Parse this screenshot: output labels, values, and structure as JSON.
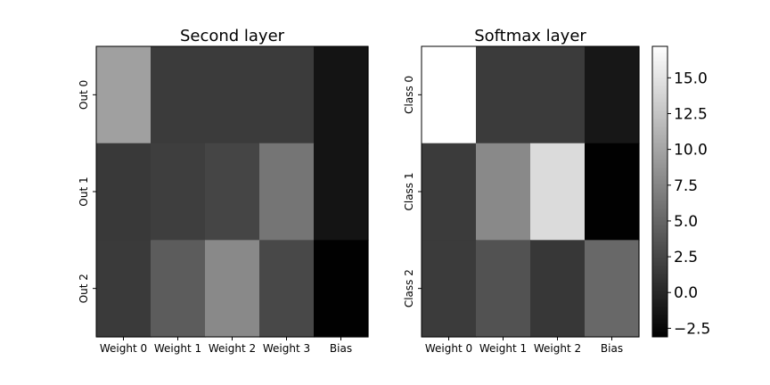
{
  "chart_data": [
    {
      "type": "heatmap",
      "title": "Second layer",
      "columns": [
        "Weight 0",
        "Weight 1",
        "Weight 2",
        "Weight 3",
        "Bias"
      ],
      "rows": [
        "Out 0",
        "Out 1",
        "Out 2"
      ],
      "values": [
        [
          9.6,
          1.6,
          1.6,
          1.6,
          -1.5
        ],
        [
          1.4,
          1.8,
          2.4,
          6.2,
          -1.5
        ],
        [
          1.5,
          4.2,
          7.8,
          2.6,
          -3.0
        ]
      ]
    },
    {
      "type": "heatmap",
      "title": "Softmax layer",
      "columns": [
        "Weight 0",
        "Weight 1",
        "Weight 2",
        "Bias"
      ],
      "rows": [
        "Class 0",
        "Class 1",
        "Class 2"
      ],
      "values": [
        [
          17.2,
          1.6,
          1.6,
          -1.3
        ],
        [
          1.6,
          7.8,
          14.3,
          -3.0
        ],
        [
          1.6,
          3.4,
          1.3,
          5.2
        ]
      ]
    }
  ],
  "colorbar": {
    "colormap": "gray",
    "vmin": -3.1,
    "vmax": 17.2,
    "ticks": [
      -2.5,
      0.0,
      2.5,
      5.0,
      7.5,
      10.0,
      12.5,
      15.0
    ],
    "tick_labels": [
      "−2.5",
      "0.0",
      "2.5",
      "5.0",
      "7.5",
      "10.0",
      "12.5",
      "15.0"
    ]
  }
}
